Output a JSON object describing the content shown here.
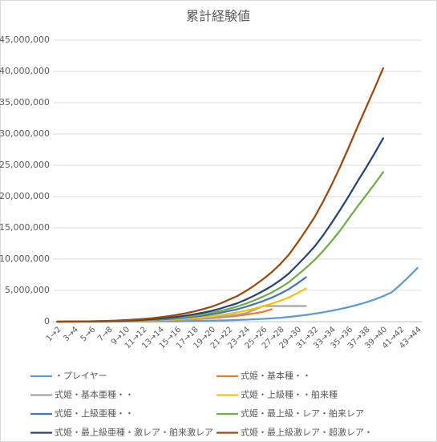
{
  "chart_data": {
    "type": "line",
    "title": "累計経験値",
    "categories": [
      "1→2",
      null,
      "3→4",
      null,
      "5→6",
      null,
      "7→8",
      null,
      "9→10",
      null,
      "11→12",
      null,
      "13→14",
      null,
      "15→16",
      null,
      "17→18",
      null,
      "19→20",
      null,
      "21→22",
      null,
      "23→24",
      null,
      "25→26",
      null,
      "27→28",
      null,
      "29→30",
      null,
      "31→32",
      null,
      "33→34",
      null,
      "35→36",
      null,
      "37→38",
      null,
      "39→40",
      null,
      "41→42",
      null,
      "43→44"
    ],
    "ylim": [
      0,
      45000000
    ],
    "yticks": [
      0,
      {
        "value": 5000000,
        "label": "5,000,000"
      },
      {
        "value": 10000000,
        "label": "10,000,000"
      },
      {
        "value": 15000000,
        "label": "15,000,000"
      },
      {
        "value": 20000000,
        "label": "20,000,000"
      },
      {
        "value": 25000000,
        "label": "25,000,000"
      },
      {
        "value": 30000000,
        "label": "30,000,000"
      },
      {
        "value": 35000000,
        "label": "35,000,000"
      },
      {
        "value": 40000000,
        "label": "40,000,000"
      },
      {
        "value": 45000000,
        "label": "45,000,000"
      }
    ],
    "grid": true,
    "legend": "bottom",
    "series": [
      {
        "name": "・プレイヤー",
        "color": "#5b9bd5",
        "values": [
          0,
          0,
          0,
          1000,
          2000,
          4000,
          6000,
          9000,
          13000,
          18000,
          25000,
          33000,
          43000,
          55000,
          70000,
          87000,
          107000,
          130000,
          157000,
          190000,
          230000,
          270000,
          320000,
          380000,
          450000,
          530000,
          630000,
          760000,
          910000,
          1080000,
          1280000,
          1500000,
          1750000,
          2030000,
          2340000,
          2690000,
          3090000,
          3550000,
          4080000,
          4700000,
          5900000,
          7200000,
          8600000
        ]
      },
      {
        "name": "式姫・基本種・・",
        "color": "#ed7d31",
        "values": [
          0,
          2000,
          5000,
          10000,
          15000,
          20000,
          30000,
          40000,
          60000,
          80000,
          100000,
          130000,
          160000,
          200000,
          250000,
          310000,
          380000,
          460000,
          550000,
          670000,
          800000,
          940000,
          1120000,
          1330000,
          1570000,
          1980000,
          null,
          null,
          null,
          null,
          null,
          null,
          null,
          null,
          null,
          null,
          null,
          null,
          null,
          null,
          null,
          null,
          null
        ]
      },
      {
        "name": "式姫・基本亜種・・",
        "color": "#a5a5a5",
        "values": [
          0,
          3000,
          6000,
          10000,
          20000,
          30000,
          40000,
          50000,
          70000,
          90000,
          120000,
          150000,
          190000,
          240000,
          300000,
          370000,
          450000,
          550000,
          660000,
          800000,
          960000,
          1130000,
          1350000,
          1900000,
          2500000,
          2500000,
          2500000,
          2500000,
          2500000,
          2500000,
          null,
          null,
          null,
          null,
          null,
          null,
          null,
          null,
          null,
          null,
          null,
          null,
          null
        ]
      },
      {
        "name": "式姫・上級種・・舶来種",
        "color": "#ffc000",
        "values": [
          0,
          4000,
          7000,
          15000,
          20000,
          30000,
          50000,
          70000,
          90000,
          120000,
          160000,
          200000,
          250000,
          320000,
          400000,
          490000,
          600000,
          730000,
          870000,
          1050000,
          1270000,
          1490000,
          1780000,
          2100000,
          2470000,
          2870000,
          3340000,
          3880000,
          4570000,
          5300000,
          null,
          null,
          null,
          null,
          null,
          null,
          null,
          null,
          null,
          null,
          null,
          null,
          null
        ]
      },
      {
        "name": "式姫・上級亜種・・",
        "color": "#4472c4",
        "values": [
          0,
          5000,
          10000,
          20000,
          30000,
          40000,
          60000,
          90000,
          120000,
          160000,
          210000,
          270000,
          340000,
          430000,
          530000,
          660000,
          800000,
          970000,
          1170000,
          1410000,
          1700000,
          1990000,
          2380000,
          2820000,
          3300000,
          3840000,
          4470000,
          5200000,
          6120000,
          7100000,
          null,
          null,
          null,
          null,
          null,
          null,
          null,
          null,
          null,
          null,
          null,
          null,
          null
        ]
      },
      {
        "name": "式姫・最上級・レア・舶来レア",
        "color": "#70ad47",
        "values": [
          0,
          10000,
          10000,
          20000,
          40000,
          50000,
          80000,
          110000,
          150000,
          190000,
          250000,
          320000,
          410000,
          520000,
          650000,
          800000,
          970000,
          1180000,
          1420000,
          1710000,
          2060000,
          2420000,
          2890000,
          3420000,
          4010000,
          4660000,
          5430000,
          6310000,
          7430000,
          8600000,
          9850000,
          11300000,
          12900000,
          14600000,
          16500000,
          18400000,
          20200000,
          22000000,
          23900000,
          null,
          null,
          null,
          null
        ]
      },
      {
        "name": "式姫・最上級亜種・激レア・舶来激レア",
        "color": "#264478",
        "values": [
          0,
          10000,
          20000,
          30000,
          40000,
          60000,
          90000,
          130000,
          180000,
          240000,
          310000,
          400000,
          500000,
          630000,
          790000,
          970000,
          1190000,
          1440000,
          1730000,
          2090000,
          2520000,
          2950000,
          3530000,
          4180000,
          4900000,
          5690000,
          6620000,
          7700000,
          9070000,
          10500000,
          12000000,
          13800000,
          15800000,
          17900000,
          20100000,
          22400000,
          24600000,
          26900000,
          29300000,
          null,
          null,
          null,
          null
        ]
      },
      {
        "name": "式姫・最上級激レア・超激レア・",
        "color": "#9e480e",
        "values": [
          0,
          10000,
          20000,
          40000,
          60000,
          90000,
          130000,
          180000,
          250000,
          330000,
          430000,
          550000,
          700000,
          880000,
          1100000,
          1350000,
          1650000,
          2000000,
          2400000,
          2900000,
          3500000,
          4100000,
          4900000,
          5800000,
          6800000,
          7900000,
          9200000,
          10700000,
          12600000,
          14600000,
          16700000,
          19200000,
          21900000,
          24800000,
          27900000,
          31100000,
          34200000,
          37300000,
          40500000,
          null,
          null,
          null,
          null
        ]
      }
    ]
  }
}
